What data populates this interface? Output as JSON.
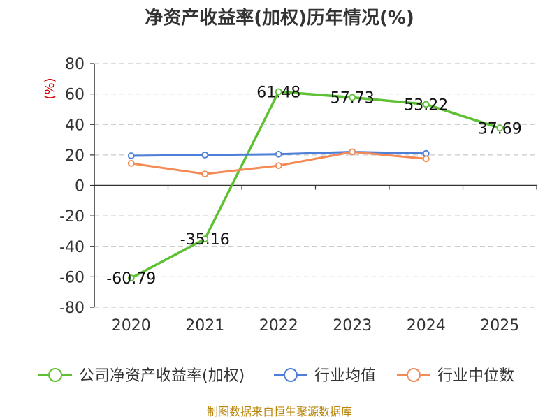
{
  "chart_data": {
    "type": "line",
    "title": "净资产收益率(加权)历年情况(%)",
    "ylabel": "(%)",
    "xlabel": "",
    "categories": [
      "2020",
      "2021",
      "2022",
      "2023",
      "2024",
      "2025"
    ],
    "ylim": [
      -80,
      80
    ],
    "yticks": [
      80,
      60,
      40,
      20,
      0,
      -20,
      -40,
      -60,
      -80
    ],
    "ytick_labels": [
      "80",
      "60",
      "40",
      "20",
      "0",
      "-20",
      "-40",
      "-60",
      "-80"
    ],
    "grid": true,
    "legend_position": "bottom",
    "series": [
      {
        "name": "公司净资产收益率(加权)",
        "color": "#5dc133",
        "values": [
          -60.79,
          -35.16,
          61.48,
          57.73,
          53.22,
          37.69
        ],
        "labels": [
          "-60.79",
          "-35.16",
          "61.48",
          "57.73",
          "53.22",
          "37.69"
        ],
        "show_labels": true
      },
      {
        "name": "行业均值",
        "color": "#4e7fd8",
        "values": [
          19.5,
          20.0,
          20.5,
          22.0,
          21.0,
          null
        ],
        "show_labels": false
      },
      {
        "name": "行业中位数",
        "color": "#f58a55",
        "values": [
          14.5,
          7.5,
          13.0,
          22.0,
          17.5,
          null
        ],
        "show_labels": false
      }
    ]
  },
  "footer": "制图数据来自恒生聚源数据库"
}
